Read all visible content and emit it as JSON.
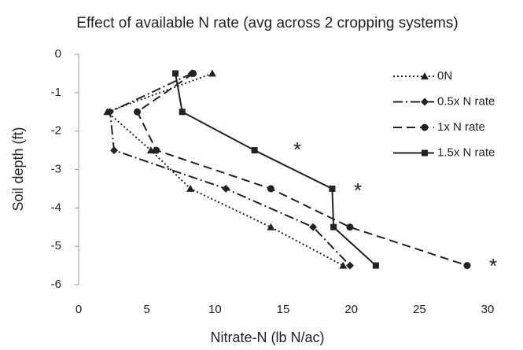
{
  "chart_data": {
    "type": "line",
    "title": "Effect of available N rate (avg across 2 cropping systems)",
    "x_label": "Nitrate-N (lb N/ac)",
    "y_label": "Soil depth (ft)",
    "xlim": [
      0,
      30
    ],
    "xticks": [
      0,
      5,
      10,
      15,
      20,
      25,
      30
    ],
    "ylim": [
      -6,
      0
    ],
    "yticks": [
      0,
      -1,
      -2,
      -3,
      -4,
      -5,
      -6
    ],
    "legend": "upper right",
    "annotations": [
      "*",
      "*",
      "*"
    ],
    "series": [
      {
        "name": "0N",
        "color": "#222222",
        "marker": "triangle",
        "dash": "dotted",
        "x": [
          9.8,
          2.1,
          5.3,
          8.2,
          14.1,
          19.4
        ],
        "values": [
          -0.5,
          -1.5,
          -2.5,
          -3.5,
          -4.5,
          -5.5
        ]
      },
      {
        "name": "0.5x N rate",
        "color": "#222222",
        "marker": "diamond",
        "dash": "dashdot",
        "x": [
          8.3,
          2.3,
          2.6,
          10.8,
          17.2,
          19.9
        ],
        "values": [
          -0.5,
          -1.5,
          -2.5,
          -3.5,
          -4.5,
          -5.5
        ]
      },
      {
        "name": "1x N rate",
        "color": "#222222",
        "marker": "circle",
        "dash": "dashed",
        "x": [
          8.4,
          4.3,
          5.7,
          14.1,
          19.9,
          28.5
        ],
        "values": [
          -0.5,
          -1.5,
          -2.5,
          -3.5,
          -4.5,
          -5.5
        ]
      },
      {
        "name": "1.5x N rate",
        "color": "#222222",
        "marker": "square",
        "dash": "solid",
        "x": [
          7.1,
          7.6,
          12.9,
          18.6,
          18.7,
          21.8
        ],
        "values": [
          -0.5,
          -1.5,
          -2.5,
          -3.5,
          -4.5,
          -5.5
        ]
      }
    ]
  }
}
